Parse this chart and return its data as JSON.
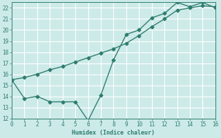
{
  "line1_x": [
    0,
    1,
    2,
    3,
    4,
    5,
    6,
    7,
    8,
    9,
    10,
    11,
    12,
    13,
    14,
    15,
    16
  ],
  "line1_y": [
    15.5,
    15.7,
    16.0,
    16.4,
    16.7,
    17.1,
    17.5,
    17.9,
    18.3,
    18.8,
    19.5,
    20.3,
    21.0,
    21.8,
    22.0,
    22.2,
    22.1
  ],
  "line2_x": [
    0,
    1,
    2,
    3,
    4,
    5,
    6,
    7,
    8,
    9,
    10,
    11,
    12,
    13,
    14,
    15,
    16
  ],
  "line2_y": [
    15.5,
    13.8,
    14.0,
    13.5,
    13.5,
    13.5,
    11.8,
    14.1,
    17.3,
    19.6,
    20.0,
    21.1,
    21.5,
    22.5,
    22.1,
    22.5,
    22.0
  ],
  "xlabel": "Humidex (Indice chaleur)",
  "xlim": [
    0,
    16
  ],
  "ylim": [
    12,
    22.5
  ],
  "yticks": [
    12,
    13,
    14,
    15,
    16,
    17,
    18,
    19,
    20,
    21,
    22
  ],
  "xticks": [
    0,
    1,
    2,
    3,
    4,
    5,
    6,
    7,
    8,
    9,
    10,
    11,
    12,
    13,
    14,
    15,
    16
  ],
  "line_color": "#2e7d6e",
  "bg_color": "#cceae8",
  "grid_color": "#b8dbd8",
  "marker": "D",
  "marker_size": 2.5,
  "linewidth": 1.0
}
